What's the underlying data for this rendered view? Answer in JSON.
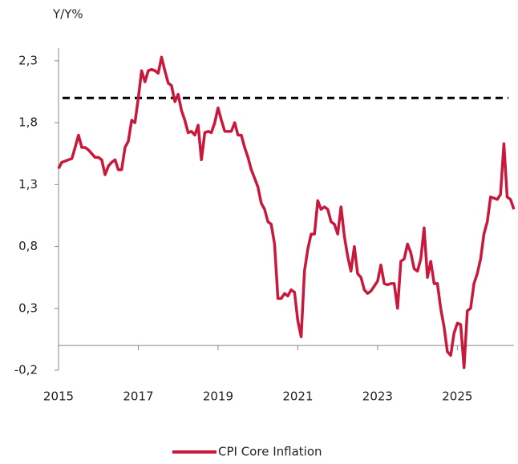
{
  "chart_data": {
    "type": "line",
    "y_label": "Y/Y%",
    "x": [
      2015,
      2015.083,
      2015.167,
      2015.25,
      2015.333,
      2015.417,
      2015.5,
      2015.583,
      2015.667,
      2015.75,
      2015.833,
      2015.917,
      2016,
      2016.083,
      2016.167,
      2016.25,
      2016.333,
      2016.417,
      2016.5,
      2016.583,
      2016.667,
      2016.75,
      2016.833,
      2016.917,
      2017,
      2017.083,
      2017.167,
      2017.25,
      2017.333,
      2017.417,
      2017.5,
      2017.583,
      2017.667,
      2017.75,
      2017.833,
      2017.917,
      2018,
      2018.083,
      2018.167,
      2018.25,
      2018.333,
      2018.417,
      2018.5,
      2018.583,
      2018.667,
      2018.75,
      2018.833,
      2018.917,
      2019,
      2019.083,
      2019.167,
      2019.25,
      2019.333,
      2019.417,
      2019.5,
      2019.583,
      2019.667,
      2019.75,
      2019.833,
      2019.917,
      2020,
      2020.083,
      2020.167,
      2020.25,
      2020.333,
      2020.417,
      2020.5,
      2020.583,
      2020.667,
      2020.75,
      2020.833,
      2020.917,
      2021,
      2021.083,
      2021.167,
      2021.25,
      2021.333,
      2021.417,
      2021.5,
      2021.583,
      2021.667,
      2021.75,
      2021.833,
      2021.917,
      2022,
      2022.083,
      2022.167,
      2022.25,
      2022.333,
      2022.417,
      2022.5,
      2022.583,
      2022.667,
      2022.75,
      2022.833,
      2022.917,
      2023,
      2023.083,
      2023.167,
      2023.25,
      2023.333,
      2023.417,
      2023.5,
      2023.583,
      2023.667,
      2023.75,
      2023.833,
      2023.917,
      2024,
      2024.083,
      2024.167,
      2024.25,
      2024.333,
      2024.417,
      2024.5,
      2024.583,
      2024.667,
      2024.75,
      2024.833,
      2024.917,
      2025,
      2025.083,
      2025.167,
      2025.25,
      2025.333,
      2025.417,
      2025.5,
      2025.583,
      2025.667,
      2025.75,
      2025.833,
      2025.917,
      2026,
      2026.083,
      2026.167,
      2026.25,
      2026.333,
      2026.417
    ],
    "series": [
      {
        "name": "CPI Core Inflation",
        "color": "#c8193c",
        "values": [
          1.43,
          1.48,
          1.49,
          1.5,
          1.51,
          1.6,
          1.7,
          1.6,
          1.6,
          1.58,
          1.55,
          1.52,
          1.52,
          1.5,
          1.38,
          1.45,
          1.48,
          1.5,
          1.42,
          1.42,
          1.6,
          1.65,
          1.82,
          1.8,
          2.0,
          2.22,
          2.13,
          2.22,
          2.23,
          2.22,
          2.2,
          2.33,
          2.22,
          2.12,
          2.1,
          1.97,
          2.03,
          1.9,
          1.82,
          1.72,
          1.73,
          1.7,
          1.78,
          1.5,
          1.72,
          1.73,
          1.72,
          1.8,
          1.92,
          1.82,
          1.73,
          1.73,
          1.73,
          1.8,
          1.7,
          1.7,
          1.6,
          1.52,
          1.42,
          1.35,
          1.28,
          1.15,
          1.1,
          1.0,
          0.98,
          0.82,
          0.38,
          0.38,
          0.42,
          0.4,
          0.45,
          0.43,
          0.2,
          0.07,
          0.6,
          0.78,
          0.9,
          0.9,
          1.17,
          1.1,
          1.12,
          1.1,
          1.0,
          0.98,
          0.9,
          1.12,
          0.88,
          0.72,
          0.6,
          0.8,
          0.58,
          0.55,
          0.45,
          0.42,
          0.44,
          0.48,
          0.52,
          0.65,
          0.5,
          0.49,
          0.5,
          0.5,
          0.3,
          0.68,
          0.7,
          0.82,
          0.75,
          0.62,
          0.6,
          0.7,
          0.95,
          0.55,
          0.68,
          0.5,
          0.5,
          0.3,
          0.15,
          -0.05,
          -0.08,
          0.1,
          0.18,
          0.17,
          -0.18,
          0.28,
          0.3,
          0.5,
          0.58,
          0.7,
          0.9,
          1.0,
          1.2,
          1.19,
          1.18,
          1.22,
          1.63,
          1.2,
          1.18,
          1.1
        ]
      }
    ],
    "target": 2,
    "xlim": [
      2015,
      2026.42
    ],
    "xticks": [
      2015,
      2017,
      2019,
      2021,
      2023,
      2025
    ],
    "ylim": [
      -0.2,
      2.5
    ],
    "yticks": [
      {
        "value": -0.2,
        "label": "-0,2"
      },
      {
        "value": 0.3,
        "label": "0,3"
      },
      {
        "value": 0.8,
        "label": "0,8"
      },
      {
        "value": 1.3,
        "label": "1,3"
      },
      {
        "value": 1.8,
        "label": "1,8"
      },
      {
        "value": 2.3,
        "label": "2,3"
      }
    ],
    "legend": "bottom"
  }
}
